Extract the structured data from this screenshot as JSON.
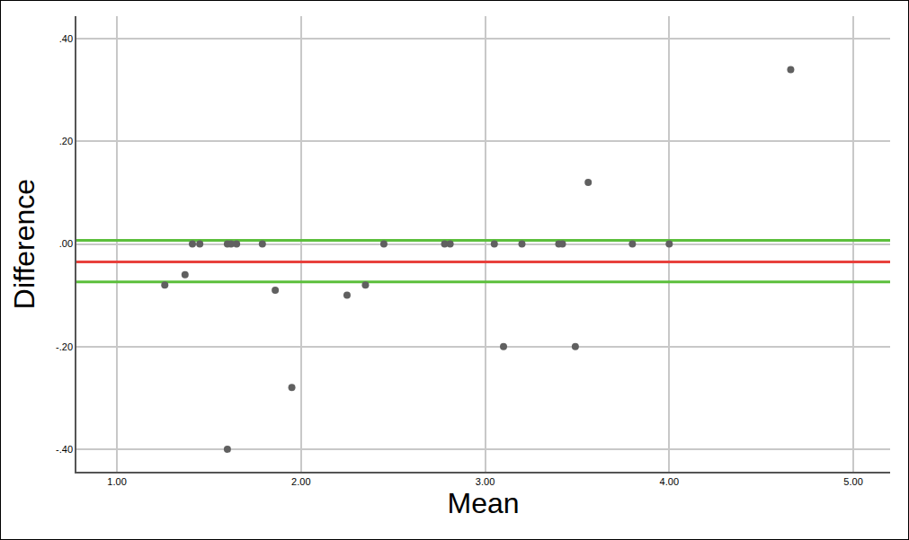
{
  "chart_data": {
    "type": "scatter",
    "x_label": "Mean",
    "y_label": "Difference",
    "xlim": [
      0.78,
      5.2
    ],
    "ylim": [
      -0.444,
      0.444
    ],
    "xticks": [
      {
        "value": 1,
        "label": "1.00"
      },
      {
        "value": 2,
        "label": "2.00"
      },
      {
        "value": 3,
        "label": "3.00"
      },
      {
        "value": 4,
        "label": "4.00"
      },
      {
        "value": 5,
        "label": "5.00"
      }
    ],
    "yticks": [
      {
        "value": -0.4,
        "label": "-.40"
      },
      {
        "value": -0.2,
        "label": "-.20"
      },
      {
        "value": 0,
        "label": ".00"
      },
      {
        "value": 0.2,
        "label": ".20"
      },
      {
        "value": 0.4,
        "label": ".40"
      }
    ],
    "grid": true,
    "series": [
      {
        "type": "scatter",
        "color": "#606060",
        "marker": "circle",
        "x": [
          1.26,
          1.37,
          1.41,
          1.45,
          1.6,
          1.62,
          1.65,
          1.6,
          1.79,
          1.86,
          1.95,
          2.25,
          2.35,
          2.45,
          2.78,
          2.81,
          3.05,
          3.1,
          3.2,
          3.4,
          3.42,
          3.49,
          3.56,
          3.8,
          4.0,
          4.66
        ],
        "values": [
          -0.08,
          -0.06,
          0,
          0,
          0,
          0,
          0,
          -0.4,
          0,
          -0.09,
          -0.28,
          -0.1,
          -0.08,
          0,
          0,
          0,
          0,
          -0.2,
          0,
          0,
          0,
          -0.2,
          0.12,
          0,
          0,
          0.34
        ]
      },
      {
        "type": "line",
        "color": "#e8413c",
        "line_style": "solid",
        "x": [
          0.78,
          5.2
        ],
        "values": [
          -0.035,
          -0.035
        ]
      },
      {
        "type": "line",
        "color": "#5cbf3c",
        "line_style": "solid",
        "x": [
          0.78,
          5.2
        ],
        "values": [
          0.007,
          0.007
        ]
      },
      {
        "type": "line",
        "color": "#5cbf3c",
        "line_style": "solid",
        "x": [
          0.78,
          5.2
        ],
        "values": [
          -0.074,
          -0.074
        ]
      }
    ]
  }
}
